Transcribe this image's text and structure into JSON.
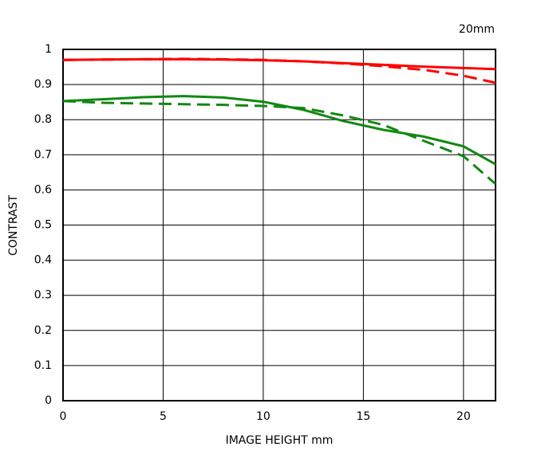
{
  "chart_data": {
    "type": "line",
    "title": "20mm",
    "x_label": "IMAGE HEIGHT   mm",
    "y_label": "CONTRAST",
    "x": [
      0,
      2,
      4,
      6,
      8,
      10,
      12,
      14,
      16,
      18,
      20,
      21.6
    ],
    "series": [
      {
        "color": "#ff0000",
        "dashed": false,
        "values": [
          0.97,
          0.971,
          0.972,
          0.972,
          0.971,
          0.969,
          0.966,
          0.961,
          0.956,
          0.951,
          0.947,
          0.944
        ]
      },
      {
        "color": "#ff0000",
        "dashed": true,
        "values": [
          0.97,
          0.971,
          0.972,
          0.973,
          0.972,
          0.97,
          0.966,
          0.96,
          0.952,
          0.942,
          0.925,
          0.905
        ]
      },
      {
        "color": "#118811",
        "dashed": false,
        "values": [
          0.853,
          0.858,
          0.864,
          0.867,
          0.863,
          0.851,
          0.828,
          0.796,
          0.771,
          0.752,
          0.724,
          0.673
        ]
      },
      {
        "color": "#118811",
        "dashed": true,
        "values": [
          0.853,
          0.848,
          0.846,
          0.844,
          0.842,
          0.839,
          0.833,
          0.812,
          0.785,
          0.74,
          0.696,
          0.617
        ]
      }
    ],
    "xlim": [
      0,
      21.6
    ],
    "xticks": [
      0,
      5,
      10,
      15,
      20
    ],
    "ylim": [
      0,
      1
    ],
    "yticks": [
      0,
      0.1,
      0.2,
      0.3,
      0.4,
      0.5,
      0.6,
      0.7,
      0.8,
      0.9,
      1
    ],
    "grid": true
  }
}
